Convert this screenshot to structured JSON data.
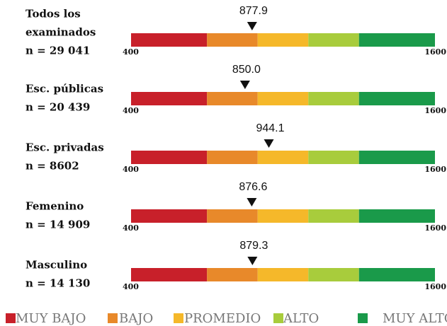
{
  "chart_data": {
    "type": "bullet",
    "categories": [
      [
        "Todos los",
        "examinados",
        "n = 29 041"
      ],
      [
        "Esc. públicas",
        " n = 20 439"
      ],
      [
        "Esc. privadas",
        " n = 8602"
      ],
      [
        "Femenino",
        "n = 14 909"
      ],
      [
        "Masculino",
        "n = 14 130"
      ]
    ],
    "values": [
      877.9,
      850.0,
      944.1,
      876.6,
      879.3
    ],
    "value_labels": [
      "877.9",
      "850.0",
      "944.1",
      "876.6",
      "879.3"
    ],
    "xlim": [
      400,
      1600
    ],
    "xticks": [
      400,
      1600
    ],
    "band_edges": [
      400,
      700,
      900,
      1100,
      1300,
      1600
    ],
    "series": [
      {
        "name": "MUY BAJO",
        "color": "#c8202a"
      },
      {
        "name": "BAJO",
        "color": "#e8892a"
      },
      {
        "name": "PROMEDIO",
        "color": "#f5b82a"
      },
      {
        "name": "ALTO",
        "color": "#a8cc3c"
      },
      {
        "name": "MUY ALTO",
        "color": "#1a9a4a"
      }
    ]
  }
}
